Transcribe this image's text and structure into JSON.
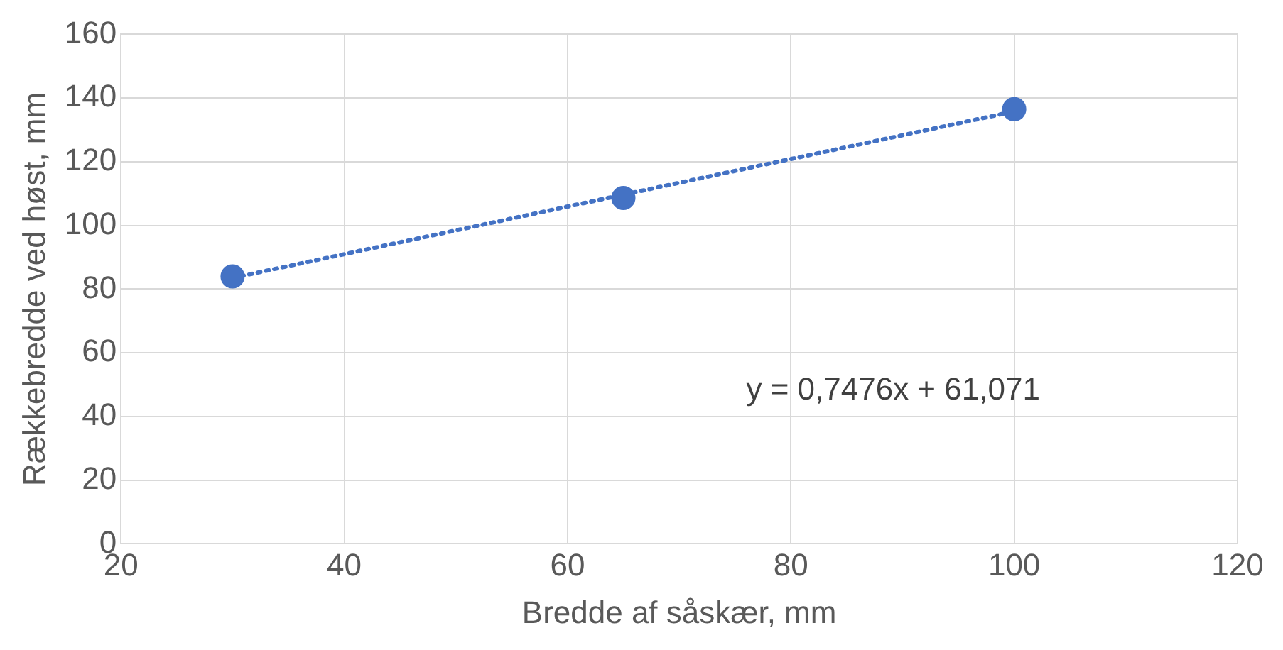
{
  "chart_data": {
    "type": "scatter",
    "xlabel": "Bredde af såskær, mm",
    "ylabel": "Rækkebredde ved høst, mm",
    "xlim": [
      20,
      120
    ],
    "xticks": [
      20,
      40,
      60,
      80,
      100,
      120
    ],
    "ylim": [
      0,
      160
    ],
    "yticks": [
      0,
      20,
      40,
      60,
      80,
      100,
      120,
      140,
      160
    ],
    "grid": true,
    "legend": false,
    "series": [
      {
        "type": "scatter",
        "x": [
          30,
          65,
          100
        ],
        "values": [
          84,
          108.6,
          136.5
        ],
        "color": "#4472c4",
        "marker": "circle"
      },
      {
        "type": "line",
        "x": [
          30,
          100
        ],
        "values": [
          83.5,
          135.8
        ],
        "color": "#4472c4",
        "line_style": "dotted",
        "marker": "none"
      }
    ],
    "annotations": [
      "y = 0,7476x + 61,071"
    ]
  }
}
